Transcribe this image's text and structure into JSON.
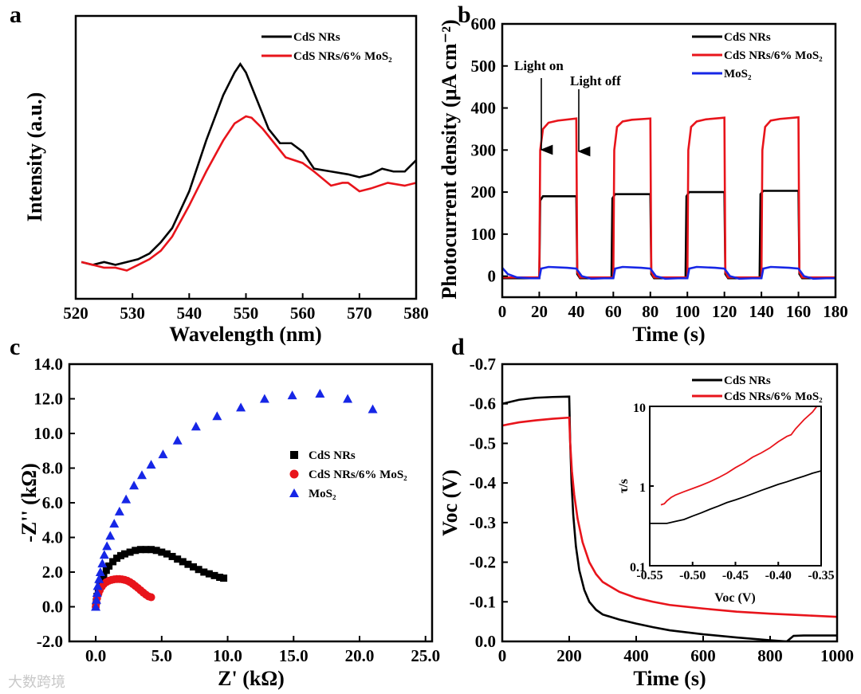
{
  "watermark": "大数跨境",
  "colors": {
    "black": "#000000",
    "red": "#e8141b",
    "blue": "#1626e6"
  },
  "chart_data": [
    {
      "panel": "a",
      "type": "line",
      "xlabel": "Wavelength (nm)",
      "ylabel": "Intensity (a.u.)",
      "xlim": [
        520,
        580
      ],
      "ylim": [
        0,
        1
      ],
      "xticks": [
        520,
        530,
        540,
        550,
        560,
        570,
        580
      ],
      "yticks": [],
      "series": [
        {
          "name": "CdS NRs",
          "color": "#000000",
          "x": [
            521,
            523,
            525,
            527,
            529,
            531,
            533,
            535,
            537,
            540,
            543,
            546,
            548,
            549,
            550,
            552,
            554,
            556,
            558,
            560,
            562,
            565,
            568,
            570,
            572,
            574,
            576,
            578,
            580
          ],
          "y": [
            0.13,
            0.12,
            0.13,
            0.12,
            0.13,
            0.14,
            0.16,
            0.2,
            0.25,
            0.38,
            0.56,
            0.72,
            0.8,
            0.83,
            0.8,
            0.7,
            0.6,
            0.55,
            0.55,
            0.52,
            0.46,
            0.45,
            0.44,
            0.43,
            0.44,
            0.46,
            0.45,
            0.45,
            0.49
          ]
        },
        {
          "name": "CdS NRs/6% MoS₂",
          "color": "#e8141b",
          "x": [
            521,
            523,
            525,
            527,
            529,
            531,
            533,
            535,
            537,
            540,
            543,
            546,
            548,
            550,
            551,
            553,
            555,
            557,
            560,
            562,
            565,
            567,
            568,
            570,
            572,
            575,
            578,
            580
          ],
          "y": [
            0.13,
            0.12,
            0.11,
            0.11,
            0.1,
            0.12,
            0.14,
            0.17,
            0.22,
            0.33,
            0.45,
            0.56,
            0.62,
            0.645,
            0.64,
            0.6,
            0.55,
            0.5,
            0.48,
            0.45,
            0.4,
            0.41,
            0.41,
            0.38,
            0.39,
            0.41,
            0.4,
            0.41
          ]
        }
      ]
    },
    {
      "panel": "b",
      "type": "line",
      "xlabel": "Time (s)",
      "ylabel": "Photocurrent density (μA cm⁻²)",
      "xlim": [
        0,
        180
      ],
      "ylim": [
        -50,
        600
      ],
      "xticks": [
        0,
        20,
        40,
        60,
        80,
        100,
        120,
        140,
        160,
        180
      ],
      "yticks": [
        0,
        100,
        200,
        300,
        400,
        500,
        600
      ],
      "annotations": [
        "Light on",
        "Light off"
      ],
      "series": [
        {
          "name": "CdS NRs",
          "color": "#000000",
          "x": [
            0,
            20,
            20.5,
            22,
            40,
            40.5,
            42,
            59,
            59.5,
            61,
            80,
            80.5,
            82,
            99,
            99.5,
            101,
            120,
            120.5,
            122,
            139,
            139.5,
            141,
            160,
            160.5,
            162,
            180
          ],
          "y": [
            -5,
            -5,
            180,
            190,
            190,
            5,
            -5,
            -5,
            185,
            195,
            195,
            5,
            -5,
            -5,
            190,
            200,
            200,
            5,
            -5,
            -5,
            195,
            203,
            203,
            5,
            -5,
            -5
          ]
        },
        {
          "name": "CdS NRs/6% MoS₂",
          "color": "#e8141b",
          "x": [
            0,
            20,
            20.5,
            22,
            25,
            30,
            40,
            40.5,
            42,
            60,
            60.5,
            62,
            65,
            70,
            80,
            80.5,
            82,
            100,
            100.5,
            102,
            105,
            110,
            120,
            120.5,
            122,
            140,
            140.5,
            142,
            145,
            150,
            160,
            160.5,
            162,
            180
          ],
          "y": [
            -3,
            -3,
            300,
            350,
            365,
            370,
            375,
            10,
            -3,
            -3,
            300,
            355,
            368,
            372,
            375,
            10,
            -3,
            -3,
            300,
            355,
            368,
            373,
            377,
            10,
            -3,
            -3,
            300,
            355,
            370,
            374,
            378,
            10,
            -3,
            -3
          ]
        },
        {
          "name": "MoS₂",
          "color": "#1626e6",
          "x": [
            0,
            3,
            8,
            15,
            20,
            21,
            25,
            35,
            40,
            43,
            48,
            55,
            60,
            61,
            65,
            75,
            80,
            83,
            88,
            95,
            100,
            101,
            105,
            115,
            120,
            123,
            128,
            135,
            140,
            141,
            145,
            155,
            160,
            163,
            168,
            175,
            180
          ],
          "y": [
            20,
            5,
            -3,
            -5,
            -5,
            18,
            22,
            20,
            18,
            0,
            -6,
            -5,
            -5,
            18,
            22,
            20,
            18,
            0,
            -6,
            -5,
            -5,
            18,
            22,
            20,
            18,
            0,
            -6,
            -5,
            -5,
            18,
            22,
            20,
            18,
            0,
            -6,
            -5,
            -5
          ]
        }
      ]
    },
    {
      "panel": "c",
      "type": "scatter",
      "xlabel": "Z' (kΩ)",
      "ylabel": "-Z'' (kΩ)",
      "xlim": [
        -2,
        25.5
      ],
      "ylim": [
        -2,
        14
      ],
      "xticks": [
        0,
        5,
        10,
        15,
        20,
        25
      ],
      "yticks": [
        -2,
        0,
        2,
        4,
        6,
        8,
        10,
        12,
        14
      ],
      "xticklabels": [
        "0.0",
        "5.0",
        "10.0",
        "15.0",
        "20.0",
        "25.0"
      ],
      "yticklabels": [
        "-2.0",
        "0.0",
        "2.0",
        "4.0",
        "6.0",
        "8.0",
        "10.0",
        "12.0",
        "14.0"
      ],
      "series": [
        {
          "name": "CdS NRs",
          "color": "#000000",
          "marker": "square",
          "x": [
            0,
            0.05,
            0.1,
            0.2,
            0.3,
            0.45,
            0.6,
            0.8,
            1.0,
            1.3,
            1.6,
            1.9,
            2.2,
            2.6,
            3.0,
            3.4,
            3.8,
            4.2,
            4.6,
            5.0,
            5.4,
            5.8,
            6.2,
            6.6,
            7.0,
            7.4,
            7.8,
            8.2,
            8.6,
            9.0,
            9.4,
            9.7
          ],
          "y": [
            0,
            0.3,
            0.6,
            0.9,
            1.2,
            1.5,
            1.8,
            2.1,
            2.35,
            2.6,
            2.8,
            2.95,
            3.05,
            3.15,
            3.25,
            3.3,
            3.3,
            3.3,
            3.25,
            3.15,
            3.05,
            2.9,
            2.75,
            2.6,
            2.45,
            2.3,
            2.15,
            2.0,
            1.9,
            1.8,
            1.7,
            1.65
          ]
        },
        {
          "name": "CdS NRs/6% MoS₂",
          "color": "#e8141b",
          "marker": "circle",
          "x": [
            0,
            0.05,
            0.1,
            0.2,
            0.3,
            0.45,
            0.6,
            0.8,
            1.0,
            1.2,
            1.4,
            1.6,
            1.8,
            2.0,
            2.2,
            2.4,
            2.6,
            2.8,
            3.0,
            3.2,
            3.4,
            3.6,
            3.8,
            4.0,
            4.2
          ],
          "y": [
            0,
            0.25,
            0.5,
            0.75,
            0.95,
            1.15,
            1.3,
            1.42,
            1.5,
            1.55,
            1.58,
            1.6,
            1.6,
            1.58,
            1.55,
            1.5,
            1.42,
            1.32,
            1.2,
            1.08,
            0.95,
            0.82,
            0.7,
            0.6,
            0.55
          ]
        },
        {
          "name": "MoS₂",
          "color": "#1626e6",
          "marker": "triangle",
          "x": [
            0,
            0.05,
            0.1,
            0.15,
            0.25,
            0.35,
            0.5,
            0.65,
            0.85,
            1.1,
            1.4,
            1.8,
            2.3,
            2.9,
            3.5,
            4.2,
            5.1,
            6.2,
            7.6,
            9.2,
            11.0,
            12.8,
            14.9,
            17.0,
            19.1,
            21.0
          ],
          "y": [
            0,
            0.4,
            0.8,
            1.2,
            1.6,
            2.0,
            2.5,
            3.0,
            3.5,
            4.1,
            4.8,
            5.5,
            6.2,
            7.0,
            7.6,
            8.2,
            8.8,
            9.6,
            10.4,
            11.0,
            11.5,
            12.0,
            12.2,
            12.3,
            12.0,
            11.4
          ]
        }
      ]
    },
    {
      "panel": "d",
      "type": "line",
      "xlabel": "Time (s)",
      "ylabel": "Voc (V)",
      "xlim": [
        0,
        1000
      ],
      "ylim": [
        0,
        -0.7
      ],
      "xticks": [
        0,
        200,
        400,
        600,
        800,
        1000
      ],
      "yticks": [
        0,
        -0.1,
        -0.2,
        -0.3,
        -0.4,
        -0.5,
        -0.6,
        -0.7
      ],
      "yticklabels": [
        "0.0",
        "-0.1",
        "-0.2",
        "-0.3",
        "-0.4",
        "-0.5",
        "-0.6",
        "-0.7"
      ],
      "series": [
        {
          "name": "CdS NRs",
          "color": "#000000",
          "x": [
            0,
            50,
            100,
            150,
            200,
            203,
            207,
            212,
            220,
            230,
            245,
            260,
            280,
            300,
            350,
            400,
            450,
            500,
            600,
            700,
            800,
            850,
            870,
            900,
            1000
          ],
          "y": [
            -0.6,
            -0.61,
            -0.615,
            -0.617,
            -0.618,
            -0.5,
            -0.4,
            -0.32,
            -0.24,
            -0.18,
            -0.13,
            -0.1,
            -0.08,
            -0.068,
            -0.055,
            -0.045,
            -0.036,
            -0.028,
            -0.018,
            -0.01,
            -0.003,
            0,
            -0.014,
            -0.015,
            -0.015
          ]
        },
        {
          "name": "CdS NRs/6% MoS₂",
          "color": "#e8141b",
          "x": [
            0,
            50,
            100,
            150,
            200,
            203,
            208,
            215,
            225,
            240,
            260,
            280,
            300,
            350,
            400,
            450,
            500,
            600,
            700,
            800,
            900,
            1000
          ],
          "y": [
            -0.545,
            -0.553,
            -0.558,
            -0.562,
            -0.565,
            -0.5,
            -0.43,
            -0.37,
            -0.31,
            -0.25,
            -0.2,
            -0.17,
            -0.15,
            -0.125,
            -0.11,
            -0.1,
            -0.092,
            -0.083,
            -0.075,
            -0.07,
            -0.066,
            -0.062
          ]
        }
      ]
    },
    {
      "panel": "d-inset",
      "type": "line",
      "xlabel": "Voc (V)",
      "ylabel": "τ/s",
      "xlim": [
        -0.55,
        -0.35
      ],
      "ylim": [
        0.1,
        10
      ],
      "yscale": "log",
      "xticks": [
        -0.55,
        -0.5,
        -0.45,
        -0.4,
        -0.35
      ],
      "yticks": [
        0.1,
        1,
        10
      ],
      "xticklabels": [
        "-0.55",
        "-0.50",
        "-0.45",
        "-0.40",
        "-0.35"
      ],
      "yticklabels": [
        "0.1",
        "1",
        "10"
      ],
      "series": [
        {
          "name": "CdS NRs",
          "color": "#000000",
          "x": [
            -0.55,
            -0.53,
            -0.52,
            -0.51,
            -0.5,
            -0.49,
            -0.48,
            -0.47,
            -0.46,
            -0.45,
            -0.44,
            -0.43,
            -0.42,
            -0.41,
            -0.4,
            -0.39,
            -0.38,
            -0.37,
            -0.36,
            -0.35
          ],
          "y": [
            0.34,
            0.34,
            0.36,
            0.38,
            0.42,
            0.46,
            0.51,
            0.56,
            0.62,
            0.67,
            0.73,
            0.8,
            0.88,
            0.96,
            1.05,
            1.13,
            1.23,
            1.33,
            1.45,
            1.55
          ]
        },
        {
          "name": "CdS NRs/6% MoS₂",
          "color": "#e8141b",
          "x": [
            -0.537,
            -0.533,
            -0.53,
            -0.525,
            -0.52,
            -0.51,
            -0.5,
            -0.49,
            -0.48,
            -0.47,
            -0.46,
            -0.45,
            -0.44,
            -0.43,
            -0.42,
            -0.41,
            -0.4,
            -0.39,
            -0.385,
            -0.38,
            -0.37,
            -0.36,
            -0.355
          ],
          "y": [
            0.58,
            0.6,
            0.65,
            0.72,
            0.77,
            0.85,
            0.93,
            1.02,
            1.13,
            1.27,
            1.45,
            1.7,
            1.95,
            2.3,
            2.6,
            3.0,
            3.6,
            4.2,
            4.4,
            5.2,
            6.8,
            8.5,
            10
          ]
        }
      ]
    }
  ],
  "panel_labels": [
    "a",
    "b",
    "c",
    "d"
  ]
}
